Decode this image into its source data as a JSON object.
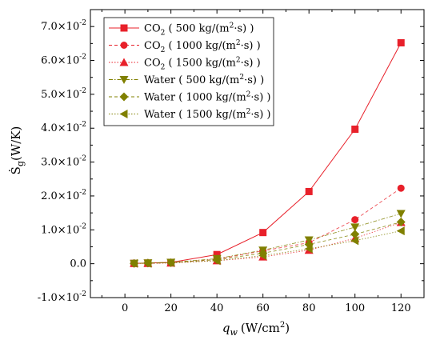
{
  "chart_data": {
    "type": "line",
    "xlabel_base": "q",
    "xlabel_sub": "w",
    "xlabel_unit": "(W/cm",
    "xlabel_unit_sup": "2",
    "xlabel_unit_end": ")",
    "ylabel_base": "Ṡ",
    "ylabel_sub": "g",
    "ylabel_unit": "(W/K)",
    "xlim": [
      -15,
      130
    ],
    "ylim": [
      -0.01,
      0.075
    ],
    "x_ticks": [
      {
        "value": 0,
        "label": "0"
      },
      {
        "value": 20,
        "label": "20"
      },
      {
        "value": 40,
        "label": "40"
      },
      {
        "value": 60,
        "label": "60"
      },
      {
        "value": 80,
        "label": "80"
      },
      {
        "value": 100,
        "label": "100"
      },
      {
        "value": 120,
        "label": "120"
      }
    ],
    "y_ticks": [
      {
        "value": -0.01,
        "label": "-1.0×10",
        "exp": "-2"
      },
      {
        "value": 0.0,
        "label": "0.0",
        "exp": ""
      },
      {
        "value": 0.01,
        "label": "1.0×10",
        "exp": "-2"
      },
      {
        "value": 0.02,
        "label": "2.0×10",
        "exp": "-2"
      },
      {
        "value": 0.03,
        "label": "3.0×10",
        "exp": "-2"
      },
      {
        "value": 0.04,
        "label": "4.0×10",
        "exp": "-2"
      },
      {
        "value": 0.05,
        "label": "5.0×10",
        "exp": "-2"
      },
      {
        "value": 0.06,
        "label": "6.0×10",
        "exp": "-2"
      },
      {
        "value": 0.07,
        "label": "7.0×10",
        "exp": "-2"
      }
    ],
    "x": [
      4,
      10,
      20,
      40,
      60,
      80,
      100,
      120
    ],
    "series": [
      {
        "name": "CO₂ ( 500 kg/(m²·s) )",
        "legend_base": "CO",
        "legend_sub": "2",
        "legend_rest": " ( 500 kg/(m",
        "legend_sup": "2",
        "legend_end": "·s) )",
        "marker": "square",
        "color": "#e8202a",
        "line": "solid",
        "values": [
          0.0001,
          0.0002,
          0.0004,
          0.0027,
          0.0092,
          0.0213,
          0.0397,
          0.0652
        ]
      },
      {
        "name": "CO₂ ( 1000 kg/(m²·s) )",
        "legend_base": "CO",
        "legend_sub": "2",
        "legend_rest": " ( 1000 kg/(m",
        "legend_sup": "2",
        "legend_end": "·s) )",
        "marker": "circle",
        "color": "#e8202a",
        "line": "dashed",
        "values": [
          0.0001,
          0.0001,
          0.0003,
          0.0013,
          0.0038,
          0.0062,
          0.013,
          0.0223
        ]
      },
      {
        "name": "CO₂ ( 1500 kg/(m²·s) )",
        "legend_base": "CO",
        "legend_sub": "2",
        "legend_rest": " ( 1500 kg/(m",
        "legend_sup": "2",
        "legend_end": "·s) )",
        "marker": "triangle-up",
        "color": "#e8202a",
        "line": "dotted",
        "values": [
          0.0001,
          0.0001,
          0.0002,
          0.0009,
          0.002,
          0.004,
          0.0075,
          0.0122
        ]
      },
      {
        "name": "Water ( 500 kg/(m²·s) )",
        "legend_base": "Water",
        "legend_sub": "",
        "legend_rest": " ( 500 kg/(m",
        "legend_sup": "2",
        "legend_end": "·s) )",
        "marker": "triangle-down",
        "color": "#808000",
        "line": "dashdot",
        "values": [
          0.0001,
          0.0002,
          0.0004,
          0.0015,
          0.004,
          0.007,
          0.0108,
          0.0148
        ]
      },
      {
        "name": "Water ( 1000 kg/(m²·s) )",
        "legend_base": "Water",
        "legend_sub": "",
        "legend_rest": " ( 1000 kg/(m",
        "legend_sup": "2",
        "legend_end": "·s) )",
        "marker": "diamond",
        "color": "#808000",
        "line": "dashed",
        "values": [
          0.0001,
          0.0002,
          0.0003,
          0.0012,
          0.0031,
          0.0057,
          0.0087,
          0.0123
        ]
      },
      {
        "name": "Water ( 1500 kg/(m²·s) )",
        "legend_base": "Water",
        "legend_sub": "",
        "legend_rest": " ( 1500 kg/(m",
        "legend_sup": "2",
        "legend_end": "·s) )",
        "marker": "triangle-left",
        "color": "#808000",
        "line": "dotted",
        "values": [
          0.0001,
          0.0001,
          0.0003,
          0.0009,
          0.0024,
          0.0044,
          0.0068,
          0.0097
        ]
      }
    ],
    "legend_position": "top-left",
    "grid": false
  }
}
